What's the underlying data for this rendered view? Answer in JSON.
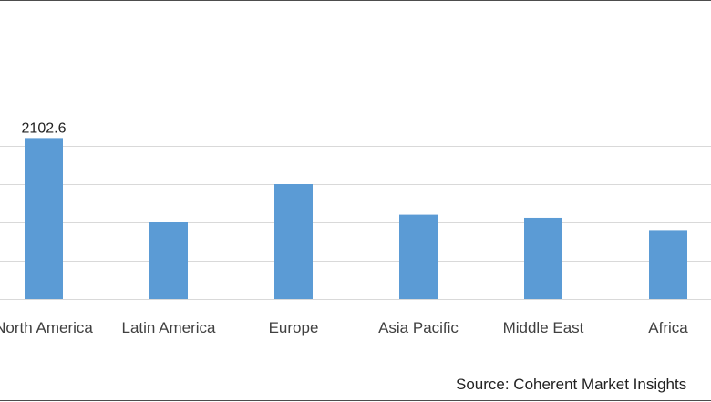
{
  "chart_data": {
    "type": "bar",
    "categories": [
      "North America",
      "Latin America",
      "Europe",
      "Asia Pacific",
      "Middle East",
      "Africa"
    ],
    "values": [
      2102.6,
      1000,
      1500,
      1100,
      1060,
      900
    ],
    "data_labels": [
      "2102.6",
      "",
      "",
      "",
      "",
      ""
    ],
    "ylim": [
      0,
      2500
    ],
    "grid": true,
    "bar_color": "#5b9bd5",
    "gridline_color": "#d9d9d9",
    "source": "Source: Coherent Market Insights"
  }
}
